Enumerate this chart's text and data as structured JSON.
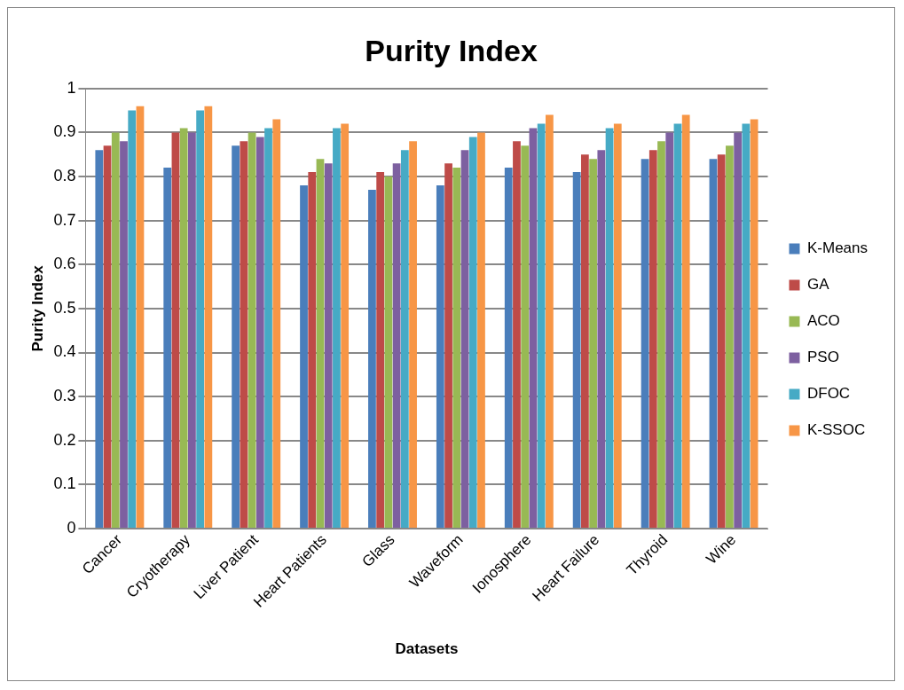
{
  "chart_data": {
    "type": "bar",
    "title": "Purity Index",
    "xlabel": "Datasets",
    "ylabel": "Purity Index",
    "categories": [
      "Cancer",
      "Cryotherapy",
      "Liver Patient",
      "Heart Patients",
      "Glass",
      "Waveform",
      "Ionosphere",
      "Heart Failure",
      "Thyroid",
      "Wine"
    ],
    "series": [
      {
        "name": "K-Means",
        "color": "#4a7ebb",
        "values": [
          0.86,
          0.82,
          0.87,
          0.78,
          0.77,
          0.78,
          0.82,
          0.81,
          0.84,
          0.84
        ]
      },
      {
        "name": "GA",
        "color": "#be4b48",
        "values": [
          0.87,
          0.9,
          0.88,
          0.81,
          0.81,
          0.83,
          0.88,
          0.85,
          0.86,
          0.85
        ]
      },
      {
        "name": "ACO",
        "color": "#98b954",
        "values": [
          0.9,
          0.91,
          0.9,
          0.84,
          0.8,
          0.82,
          0.87,
          0.84,
          0.88,
          0.87
        ]
      },
      {
        "name": "PSO",
        "color": "#7d60a0",
        "values": [
          0.88,
          0.9,
          0.89,
          0.83,
          0.83,
          0.86,
          0.91,
          0.86,
          0.9,
          0.9
        ]
      },
      {
        "name": "DFOC",
        "color": "#46aac5",
        "values": [
          0.95,
          0.95,
          0.91,
          0.91,
          0.86,
          0.89,
          0.92,
          0.91,
          0.92,
          0.92
        ]
      },
      {
        "name": "K-SSOC",
        "color": "#f79646",
        "values": [
          0.96,
          0.96,
          0.93,
          0.92,
          0.88,
          0.9,
          0.94,
          0.92,
          0.94,
          0.93
        ]
      }
    ],
    "ylim": [
      0,
      1
    ],
    "yticks": [
      0,
      0.1,
      0.2,
      0.3,
      0.4,
      0.5,
      0.6,
      0.7,
      0.8,
      0.9,
      1
    ],
    "grid": "y",
    "legend": "right"
  }
}
